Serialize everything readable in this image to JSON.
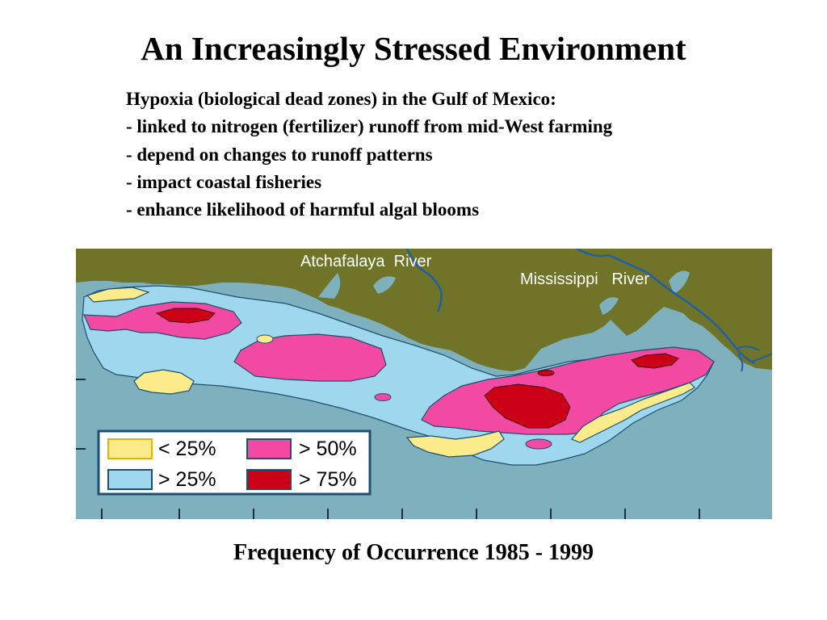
{
  "slide": {
    "title": "An Increasingly Stressed Environment",
    "intro": "Hypoxia (biological dead zones) in the Gulf of Mexico:",
    "bullets": [
      "- linked to nitrogen (fertilizer) runoff from mid-West farming",
      "- depend on changes to runoff patterns",
      "- impact coastal fisheries",
      "- enhance likelihood of harmful algal blooms"
    ],
    "caption": "Frequency of Occurrence 1985 - 1999"
  },
  "map": {
    "labels": {
      "atchafalaya": "Atchafalaya  River",
      "mississippi": "Mississippi   River"
    },
    "colors": {
      "water": "#7fb0be",
      "land": "#6f7428",
      "river": "#1f5fa8",
      "gt25": "#9fd8ee",
      "lt25": "#fceb8a",
      "gt50": "#f24aa2",
      "gt75": "#cc0016"
    },
    "legend": [
      {
        "label": "< 25%",
        "color": "#fceb8a"
      },
      {
        "label": "> 50%",
        "color": "#f24aa2"
      },
      {
        "label": "> 25%",
        "color": "#9fd8ee"
      },
      {
        "label": "> 75%",
        "color": "#cc0016"
      }
    ]
  }
}
